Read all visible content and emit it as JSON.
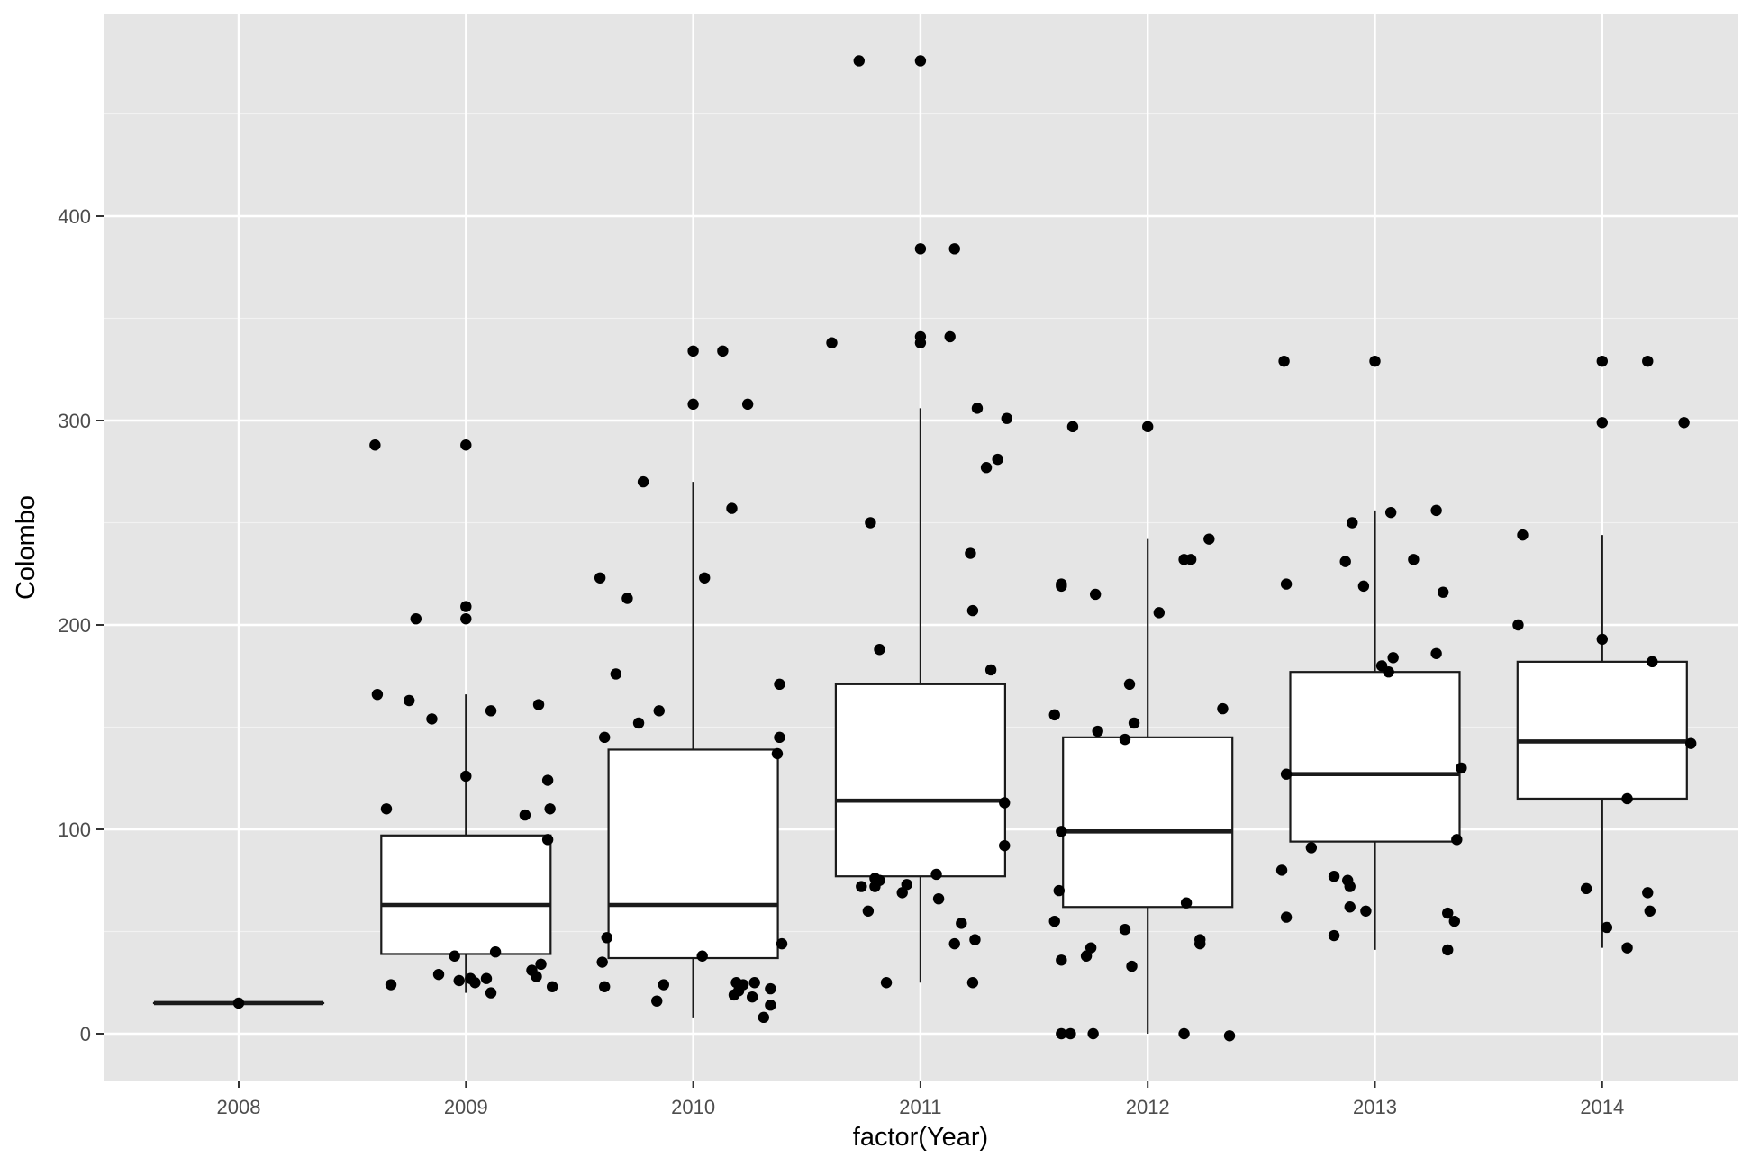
{
  "chart_data": {
    "type": "box",
    "xlabel": "factor(Year)",
    "ylabel": "Colombo",
    "categories": [
      "2008",
      "2009",
      "2010",
      "2011",
      "2012",
      "2013",
      "2014"
    ],
    "ylim": [
      -24,
      500
    ],
    "y_ticks": [
      0,
      100,
      200,
      300,
      400
    ],
    "grid": true,
    "background": "#e5e5e5",
    "box_fill": "#ffffff",
    "line_color": "#1a1a1a",
    "point_color": "#000000",
    "boxes": [
      {
        "category": "2008",
        "lower_whisker": 15,
        "q1": 15,
        "median": 15,
        "q3": 15,
        "upper_whisker": 15
      },
      {
        "category": "2009",
        "lower_whisker": 20,
        "q1": 39,
        "median": 63,
        "q3": 97,
        "upper_whisker": 166
      },
      {
        "category": "2010",
        "lower_whisker": 8,
        "q1": 37,
        "median": 63,
        "q3": 139,
        "upper_whisker": 270
      },
      {
        "category": "2011",
        "lower_whisker": 25,
        "q1": 77,
        "median": 114,
        "q3": 171,
        "upper_whisker": 306
      },
      {
        "category": "2012",
        "lower_whisker": 0,
        "q1": 62,
        "median": 99,
        "q3": 145,
        "upper_whisker": 242
      },
      {
        "category": "2013",
        "lower_whisker": 41,
        "q1": 94,
        "median": 127,
        "q3": 177,
        "upper_whisker": 256
      },
      {
        "category": "2014",
        "lower_whisker": 42,
        "q1": 115,
        "median": 143,
        "q3": 182,
        "upper_whisker": 244
      }
    ],
    "points": [
      {
        "x": 2008.0,
        "y": 15
      },
      {
        "x": 2009.0,
        "y": 288
      },
      {
        "x": 2009.0,
        "y": 209
      },
      {
        "x": 2009.0,
        "y": 203
      },
      {
        "x": 2008.6,
        "y": 288
      },
      {
        "x": 2008.78,
        "y": 203
      },
      {
        "x": 2008.61,
        "y": 166
      },
      {
        "x": 2008.75,
        "y": 163
      },
      {
        "x": 2008.85,
        "y": 154
      },
      {
        "x": 2009.11,
        "y": 158
      },
      {
        "x": 2009.32,
        "y": 161
      },
      {
        "x": 2009.0,
        "y": 126
      },
      {
        "x": 2009.36,
        "y": 124
      },
      {
        "x": 2009.37,
        "y": 110
      },
      {
        "x": 2008.65,
        "y": 110
      },
      {
        "x": 2009.26,
        "y": 107
      },
      {
        "x": 2009.36,
        "y": 95
      },
      {
        "x": 2008.95,
        "y": 38
      },
      {
        "x": 2009.13,
        "y": 40
      },
      {
        "x": 2009.33,
        "y": 34
      },
      {
        "x": 2009.29,
        "y": 31
      },
      {
        "x": 2009.31,
        "y": 28
      },
      {
        "x": 2008.88,
        "y": 29
      },
      {
        "x": 2009.02,
        "y": 27
      },
      {
        "x": 2009.09,
        "y": 27
      },
      {
        "x": 2008.97,
        "y": 26
      },
      {
        "x": 2009.04,
        "y": 25
      },
      {
        "x": 2008.67,
        "y": 24
      },
      {
        "x": 2009.38,
        "y": 23
      },
      {
        "x": 2009.11,
        "y": 20
      },
      {
        "x": 2010.0,
        "y": 334
      },
      {
        "x": 2010.13,
        "y": 334
      },
      {
        "x": 2010.0,
        "y": 308
      },
      {
        "x": 2010.24,
        "y": 308
      },
      {
        "x": 2009.78,
        "y": 270
      },
      {
        "x": 2010.17,
        "y": 257
      },
      {
        "x": 2010.05,
        "y": 223
      },
      {
        "x": 2009.59,
        "y": 223
      },
      {
        "x": 2009.71,
        "y": 213
      },
      {
        "x": 2009.66,
        "y": 176
      },
      {
        "x": 2010.38,
        "y": 171
      },
      {
        "x": 2009.85,
        "y": 158
      },
      {
        "x": 2009.76,
        "y": 152
      },
      {
        "x": 2009.61,
        "y": 145
      },
      {
        "x": 2010.38,
        "y": 145
      },
      {
        "x": 2010.37,
        "y": 137
      },
      {
        "x": 2009.62,
        "y": 47
      },
      {
        "x": 2010.39,
        "y": 44
      },
      {
        "x": 2010.04,
        "y": 38
      },
      {
        "x": 2009.6,
        "y": 35
      },
      {
        "x": 2010.19,
        "y": 25
      },
      {
        "x": 2010.27,
        "y": 25
      },
      {
        "x": 2010.22,
        "y": 24
      },
      {
        "x": 2009.87,
        "y": 24
      },
      {
        "x": 2009.61,
        "y": 23
      },
      {
        "x": 2010.34,
        "y": 22
      },
      {
        "x": 2010.2,
        "y": 21
      },
      {
        "x": 2010.18,
        "y": 19
      },
      {
        "x": 2010.26,
        "y": 18
      },
      {
        "x": 2009.84,
        "y": 16
      },
      {
        "x": 2010.34,
        "y": 14
      },
      {
        "x": 2010.31,
        "y": 8
      },
      {
        "x": 2010.73,
        "y": 476
      },
      {
        "x": 2011.0,
        "y": 476
      },
      {
        "x": 2011.0,
        "y": 384
      },
      {
        "x": 2011.15,
        "y": 384
      },
      {
        "x": 2011.0,
        "y": 341
      },
      {
        "x": 2011.13,
        "y": 341
      },
      {
        "x": 2011.0,
        "y": 338
      },
      {
        "x": 2010.61,
        "y": 338
      },
      {
        "x": 2011.25,
        "y": 306
      },
      {
        "x": 2011.38,
        "y": 301
      },
      {
        "x": 2011.34,
        "y": 281
      },
      {
        "x": 2011.29,
        "y": 277
      },
      {
        "x": 2010.78,
        "y": 250
      },
      {
        "x": 2011.22,
        "y": 235
      },
      {
        "x": 2011.23,
        "y": 207
      },
      {
        "x": 2010.82,
        "y": 188
      },
      {
        "x": 2011.31,
        "y": 178
      },
      {
        "x": 2011.37,
        "y": 113
      },
      {
        "x": 2011.37,
        "y": 92
      },
      {
        "x": 2011.07,
        "y": 78
      },
      {
        "x": 2010.8,
        "y": 76
      },
      {
        "x": 2010.82,
        "y": 75
      },
      {
        "x": 2010.74,
        "y": 72
      },
      {
        "x": 2010.8,
        "y": 72
      },
      {
        "x": 2010.94,
        "y": 73
      },
      {
        "x": 2010.92,
        "y": 69
      },
      {
        "x": 2011.08,
        "y": 66
      },
      {
        "x": 2010.77,
        "y": 60
      },
      {
        "x": 2011.18,
        "y": 54
      },
      {
        "x": 2011.24,
        "y": 46
      },
      {
        "x": 2011.15,
        "y": 44
      },
      {
        "x": 2010.85,
        "y": 25
      },
      {
        "x": 2011.23,
        "y": 25
      },
      {
        "x": 2011.67,
        "y": 297
      },
      {
        "x": 2012.0,
        "y": 297
      },
      {
        "x": 2012.27,
        "y": 242
      },
      {
        "x": 2012.16,
        "y": 232
      },
      {
        "x": 2012.19,
        "y": 232
      },
      {
        "x": 2011.62,
        "y": 220
      },
      {
        "x": 2011.62,
        "y": 219
      },
      {
        "x": 2011.77,
        "y": 215
      },
      {
        "x": 2012.05,
        "y": 206
      },
      {
        "x": 2011.92,
        "y": 171
      },
      {
        "x": 2012.33,
        "y": 159
      },
      {
        "x": 2011.59,
        "y": 156
      },
      {
        "x": 2011.94,
        "y": 152
      },
      {
        "x": 2011.78,
        "y": 148
      },
      {
        "x": 2011.9,
        "y": 144
      },
      {
        "x": 2011.62,
        "y": 99
      },
      {
        "x": 2011.61,
        "y": 70
      },
      {
        "x": 2012.17,
        "y": 64
      },
      {
        "x": 2011.59,
        "y": 55
      },
      {
        "x": 2011.9,
        "y": 51
      },
      {
        "x": 2012.23,
        "y": 46
      },
      {
        "x": 2012.23,
        "y": 44
      },
      {
        "x": 2011.75,
        "y": 42
      },
      {
        "x": 2011.73,
        "y": 38
      },
      {
        "x": 2011.62,
        "y": 36
      },
      {
        "x": 2011.93,
        "y": 33
      },
      {
        "x": 2011.62,
        "y": 0
      },
      {
        "x": 2011.66,
        "y": 0
      },
      {
        "x": 2011.76,
        "y": 0
      },
      {
        "x": 2012.16,
        "y": 0
      },
      {
        "x": 2012.36,
        "y": -1
      },
      {
        "x": 2012.6,
        "y": 329
      },
      {
        "x": 2013.0,
        "y": 329
      },
      {
        "x": 2013.27,
        "y": 256
      },
      {
        "x": 2013.07,
        "y": 255
      },
      {
        "x": 2012.9,
        "y": 250
      },
      {
        "x": 2013.17,
        "y": 232
      },
      {
        "x": 2012.87,
        "y": 231
      },
      {
        "x": 2012.61,
        "y": 220
      },
      {
        "x": 2012.95,
        "y": 219
      },
      {
        "x": 2013.3,
        "y": 216
      },
      {
        "x": 2013.27,
        "y": 186
      },
      {
        "x": 2013.08,
        "y": 184
      },
      {
        "x": 2013.03,
        "y": 180
      },
      {
        "x": 2013.06,
        "y": 177
      },
      {
        "x": 2013.38,
        "y": 130
      },
      {
        "x": 2012.61,
        "y": 127
      },
      {
        "x": 2013.36,
        "y": 95
      },
      {
        "x": 2012.72,
        "y": 91
      },
      {
        "x": 2012.59,
        "y": 80
      },
      {
        "x": 2012.82,
        "y": 77
      },
      {
        "x": 2012.88,
        "y": 75
      },
      {
        "x": 2012.89,
        "y": 72
      },
      {
        "x": 2012.89,
        "y": 62
      },
      {
        "x": 2012.96,
        "y": 60
      },
      {
        "x": 2013.32,
        "y": 59
      },
      {
        "x": 2013.35,
        "y": 55
      },
      {
        "x": 2012.61,
        "y": 57
      },
      {
        "x": 2012.82,
        "y": 48
      },
      {
        "x": 2013.32,
        "y": 41
      },
      {
        "x": 2014.0,
        "y": 329
      },
      {
        "x": 2014.2,
        "y": 329
      },
      {
        "x": 2014.0,
        "y": 299
      },
      {
        "x": 2014.36,
        "y": 299
      },
      {
        "x": 2013.65,
        "y": 244
      },
      {
        "x": 2013.63,
        "y": 200
      },
      {
        "x": 2014.0,
        "y": 193
      },
      {
        "x": 2014.22,
        "y": 182
      },
      {
        "x": 2014.39,
        "y": 142
      },
      {
        "x": 2014.11,
        "y": 115
      },
      {
        "x": 2013.93,
        "y": 71
      },
      {
        "x": 2014.2,
        "y": 69
      },
      {
        "x": 2014.21,
        "y": 60
      },
      {
        "x": 2014.02,
        "y": 52
      },
      {
        "x": 2014.11,
        "y": 42
      }
    ]
  }
}
